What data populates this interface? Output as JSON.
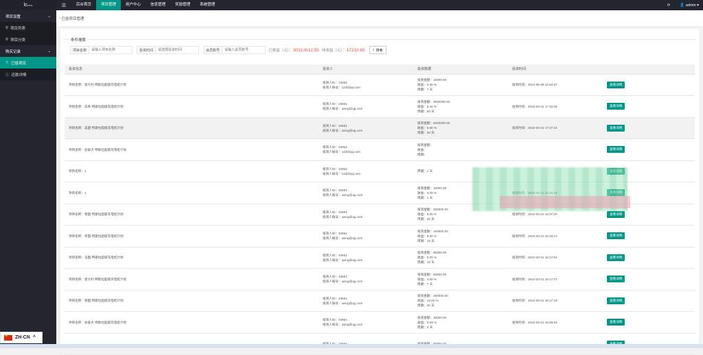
{
  "logo": {
    "text": "lc",
    "sup": "TPLS"
  },
  "nav": {
    "items": [
      "后台首页",
      "项目管理",
      "用户中心",
      "信息管理",
      "奖励管理",
      "系统管理"
    ],
    "active": "项目管理"
  },
  "user": {
    "name": "admin",
    "refresh_icon": "refresh-icon",
    "user_icon": "user-icon"
  },
  "sidebar": {
    "groups": [
      {
        "label": "项目设置",
        "items": [
          "项目列表",
          "项目分类"
        ]
      },
      {
        "label": "购买记录",
        "items": [
          "已投项目",
          "还款详情"
        ]
      }
    ],
    "active": "已投项目"
  },
  "breadcrumb": "已投项目管理",
  "search": {
    "legend": "条件搜索",
    "f1_label": "项目名称",
    "f1_placeholder": "请输入项目名称",
    "f2_label": "投资时间",
    "f2_placeholder": "请选择投资时间",
    "f3_label": "会员账号",
    "f3_placeholder": "请输入会员账号",
    "total_label": "已收益（元）：",
    "total_value": "30312612.55",
    "pending_label": "待收益（元）：",
    "pending_value": "17210.65",
    "button": "搜索"
  },
  "table": {
    "headers": [
      "投资信息",
      "投资人",
      "投资数据",
      "投资时间",
      ""
    ],
    "detail_label": "查看详情",
    "rows": [
      {
        "project": "项目名称：意大利·特斯拉超级充电桩计划",
        "uid": "投资人ID：34652",
        "account": "投资人账号：123@qq.com",
        "amount": "投资金额：10000.00",
        "rate": "收益：3.00 %",
        "period": "周期：7 天",
        "time": "投资时间：2024-05-09 12:53:37"
      },
      {
        "project": "项目名称：日本·特斯拉超级充电桩计划",
        "uid": "投资人ID：34661",
        "account": "投资人账号：axing@qq.com",
        "amount": "投资金额：3000000.00",
        "rate": "收益：5.40 %",
        "period": "周期：20 天",
        "time": "投资时间：2024-03-31 17:42:03"
      },
      {
        "project": "项目名称：美国·特斯拉超级充电桩计划",
        "uid": "投资人ID：34661",
        "account": "投资人账号：axing@qq.com",
        "amount": "投资金额：8000000.00",
        "rate": "收益：5.60 %",
        "period": "周期：30 天",
        "time": "投资时间：2024-03-31 17:37:31"
      },
      {
        "project": "项目名称：加拿大·特斯拉超级充电桩计划",
        "uid": "投资人ID：34652",
        "account": "投资人账号：123@qq.com",
        "amount": "投资金额：",
        "rate": "收益：",
        "period": "周期：",
        "time": ""
      },
      {
        "project": "项目名称：1",
        "uid": "投资人ID：34652",
        "account": "投资人账号：123@qq.com",
        "amount": "",
        "rate": "",
        "period": "周期：1 天",
        "time": ""
      },
      {
        "project": "项目名称：1",
        "uid": "投资人ID：34661",
        "account": "投资人账号：axing@qq.com",
        "amount": "投资金额：10000.00",
        "rate": "收益：3.00 %",
        "period": "周期：1 天",
        "time": "投资时间：2024-03-31 16:45:18"
      },
      {
        "project": "项目名称：德国·特斯拉超级充电桩计划",
        "uid": "投资人ID：34661",
        "account": "投资人账号：axing@qq.com",
        "amount": "投资金额：250000.00",
        "rate": "收益：5.00 %",
        "period": "周期：20 天",
        "time": "投资时间：2024-03-31 16:37:20"
      },
      {
        "project": "项目名称：英国·特斯拉超级充电桩计划",
        "uid": "投资人ID：34661",
        "account": "投资人账号：axing@qq.com",
        "amount": "投资金额：150000.00",
        "rate": "收益：8.00 %",
        "period": "周期：15 天",
        "time": "投资时间：2024-03-31 16:18:14"
      },
      {
        "project": "项目名称：法国·特斯拉超级充电桩计划",
        "uid": "投资人ID：34661",
        "account": "投资人账号：axing@qq.com",
        "amount": "投资金额：80000.00",
        "rate": "收益：5.00 %",
        "period": "周期：10 天",
        "time": "投资时间：2024-03-31 16:17:54"
      },
      {
        "project": "项目名称：意大利·特斯拉超级充电桩计划",
        "uid": "投资人ID：34661",
        "account": "投资人账号：axing@qq.com",
        "amount": "投资金额：50000.00",
        "rate": "收益：4.00 %",
        "period": "周期：7 天",
        "time": "投资时间：2024-03-31 16:17:37"
      },
      {
        "project": "项目名称：德国·特斯拉超级充电桩计划",
        "uid": "投资人ID：34661",
        "account": "投资人账号：axing@qq.com",
        "amount": "投资金额：250000.00",
        "rate": "收益：12.00 %",
        "period": "周期：20 天",
        "time": "投资时间：2024-03-31 16:17:19"
      },
      {
        "project": "项目名称：加拿大·特斯拉超级充电桩计划",
        "uid": "投资人ID：34661",
        "account": "投资人账号：axing@qq.com",
        "amount": "投资金额：20000.00",
        "rate": "收益：0.03 %",
        "period": "周期：3 天",
        "time": "投资时间：2024-03-31 15:56:54"
      },
      {
        "project": "",
        "uid": "投资人ID：34661",
        "account": "",
        "amount": "投资金额：80000.00",
        "rate": "",
        "period": "",
        "time": ""
      }
    ]
  },
  "language": "ZH-CN"
}
